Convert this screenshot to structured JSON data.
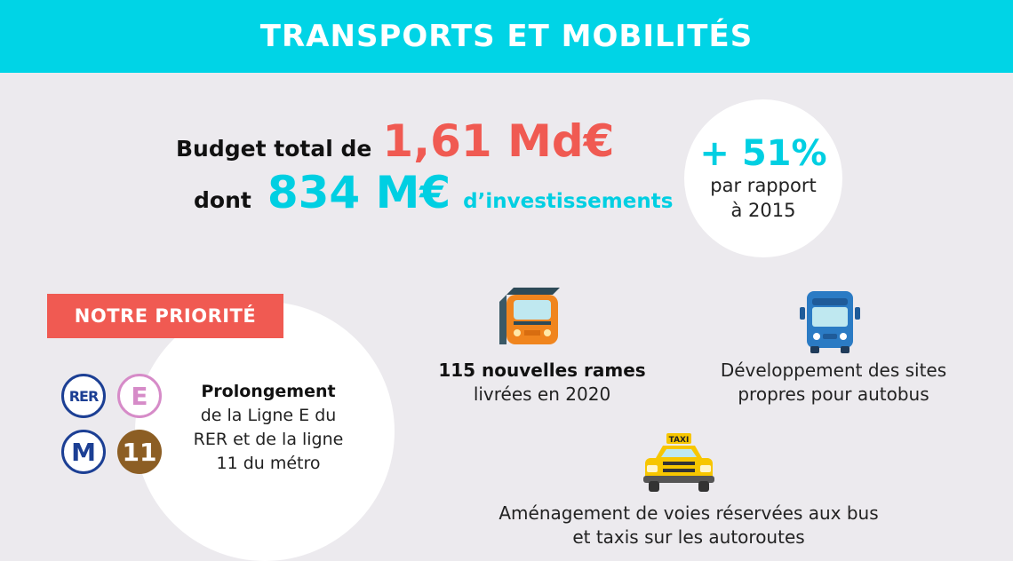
{
  "header": {
    "title": "TRANSPORTS ET MOBILITÉS"
  },
  "budget": {
    "line1_label": "Budget total de",
    "total_value": "1,61 Md€",
    "line2_label": "dont",
    "invest_value": "834 M€",
    "invest_label": "d’investissements"
  },
  "stat": {
    "value": "+ 51%",
    "line1": "par rapport",
    "line2": "à 2015"
  },
  "priority": {
    "title": "NOTRE PRIORITÉ",
    "badges": {
      "rer": "RER",
      "e": "E",
      "m": "M",
      "eleven": "11"
    },
    "heading": "Prolongement",
    "text": "de la Ligne E du RER et de la ligne 11 du métro"
  },
  "features": {
    "trains_bold": "115 nouvelles rames",
    "trains_text": "livrées en 2020",
    "bus_text": "Développement des sites propres pour autobus",
    "taxi_text": "Aménagement de voies réservées aux bus et taxis sur les autoroutes",
    "taxi_sign": "TAXI"
  },
  "icons": [
    "train-icon",
    "bus-icon",
    "taxi-icon"
  ],
  "colors": {
    "header": "#00d4e6",
    "red": "#f05a52",
    "cyan": "#00cfe2",
    "rer_blue": "#1c3f94",
    "line_e_pink": "#d68bc8",
    "line_11_brown": "#8c5e24"
  }
}
